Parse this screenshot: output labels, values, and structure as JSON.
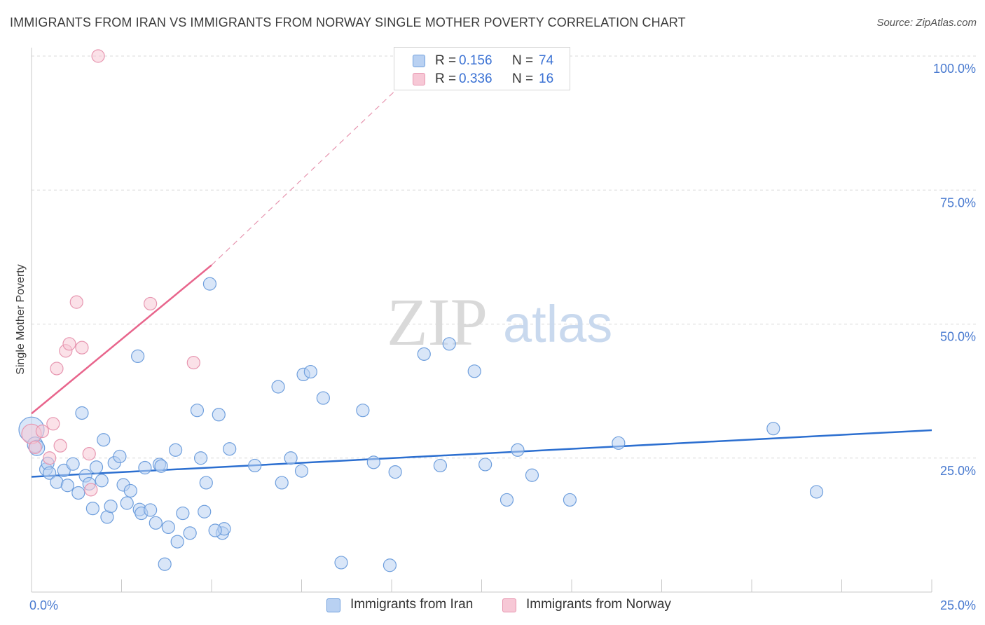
{
  "title": "IMMIGRANTS FROM IRAN VS IMMIGRANTS FROM NORWAY SINGLE MOTHER POVERTY CORRELATION CHART",
  "source": "Source: ZipAtlas.com",
  "watermark": {
    "zip": "ZIP",
    "atlas": "atlas"
  },
  "legend": {
    "r_label": "R =",
    "n_label": "N =",
    "rows": [
      {
        "series": "Immigrants from Iran",
        "r": "0.156",
        "n": "74"
      },
      {
        "series": "Immigrants from Norway",
        "r": "0.336",
        "n": "16"
      }
    ]
  },
  "colors": {
    "iran_fill": "#b9d1f2",
    "iran_stroke": "#6f9fdd",
    "iran_line": "#2c6fd0",
    "norway_fill": "#f7c8d6",
    "norway_stroke": "#e796b0",
    "norway_line": "#e8658c",
    "grid": "#d8d8d8",
    "tick_text": "#4a7bd0"
  },
  "chart_data": {
    "type": "scatter",
    "title": "IMMIGRANTS FROM IRAN VS IMMIGRANTS FROM NORWAY SINGLE MOTHER POVERTY CORRELATION CHART",
    "xlabel": "",
    "ylabel": "Single Mother Poverty",
    "xlim": [
      0,
      25
    ],
    "ylim": [
      0,
      100
    ],
    "x_tick_labels": [
      "0.0%",
      "25.0%"
    ],
    "y_ticks": [
      25,
      50,
      75,
      100
    ],
    "y_tick_labels": [
      "25.0%",
      "50.0%",
      "75.0%",
      "100.0%"
    ],
    "grid": true,
    "legend_position": "top-center",
    "series": [
      {
        "name": "Immigrants from Iran",
        "r": 0.156,
        "n": 74,
        "trend": {
          "x": [
            0,
            25
          ],
          "y": [
            21.5,
            30.2
          ],
          "style": "solid"
        },
        "points": [
          [
            0.0,
            30.3,
            18
          ],
          [
            0.1,
            27.5,
            11
          ],
          [
            0.15,
            26.9,
            11
          ],
          [
            0.4,
            22.9,
            9
          ],
          [
            0.45,
            24.0,
            9
          ],
          [
            0.5,
            22.2,
            9
          ],
          [
            0.7,
            20.5,
            9
          ],
          [
            0.9,
            22.7,
            9
          ],
          [
            1.0,
            19.9,
            9
          ],
          [
            1.15,
            23.9,
            9
          ],
          [
            1.3,
            18.5,
            9
          ],
          [
            1.4,
            33.4,
            9
          ],
          [
            1.5,
            21.7,
            9
          ],
          [
            1.6,
            20.2,
            9
          ],
          [
            1.7,
            15.6,
            9
          ],
          [
            1.8,
            23.3,
            9
          ],
          [
            1.95,
            20.8,
            9
          ],
          [
            2.0,
            28.4,
            9
          ],
          [
            2.1,
            14.0,
            9
          ],
          [
            2.2,
            16.0,
            9
          ],
          [
            2.3,
            24.1,
            9
          ],
          [
            2.45,
            25.3,
            9
          ],
          [
            2.55,
            20.0,
            9
          ],
          [
            2.65,
            16.6,
            9
          ],
          [
            2.75,
            18.9,
            9
          ],
          [
            2.95,
            44.0,
            9
          ],
          [
            3.0,
            15.4,
            9
          ],
          [
            3.05,
            14.7,
            9
          ],
          [
            3.15,
            23.2,
            9
          ],
          [
            3.3,
            15.3,
            9
          ],
          [
            3.45,
            12.9,
            9
          ],
          [
            3.55,
            23.8,
            9
          ],
          [
            3.6,
            23.5,
            9
          ],
          [
            3.8,
            12.1,
            9
          ],
          [
            4.0,
            26.5,
            9
          ],
          [
            4.05,
            9.4,
            9
          ],
          [
            4.2,
            14.7,
            9
          ],
          [
            4.4,
            11.0,
            9
          ],
          [
            4.6,
            33.9,
            9
          ],
          [
            4.7,
            25.0,
            9
          ],
          [
            4.8,
            15.0,
            9
          ],
          [
            4.85,
            20.4,
            9
          ],
          [
            4.95,
            57.5,
            9
          ],
          [
            5.2,
            33.1,
            9
          ],
          [
            5.3,
            11.0,
            9
          ],
          [
            5.35,
            11.8,
            9
          ],
          [
            5.5,
            26.7,
            9
          ],
          [
            6.2,
            23.6,
            9
          ],
          [
            6.85,
            38.3,
            9
          ],
          [
            6.95,
            20.4,
            9
          ],
          [
            7.2,
            25.0,
            9
          ],
          [
            7.5,
            22.6,
            9
          ],
          [
            7.55,
            40.6,
            9
          ],
          [
            7.75,
            41.1,
            9
          ],
          [
            8.1,
            36.2,
            9
          ],
          [
            8.6,
            5.5,
            9
          ],
          [
            9.2,
            33.9,
            9
          ],
          [
            9.5,
            24.2,
            9
          ],
          [
            9.95,
            5.0,
            9
          ],
          [
            10.1,
            22.4,
            9
          ],
          [
            10.9,
            44.4,
            9
          ],
          [
            11.6,
            46.3,
            9
          ],
          [
            11.35,
            23.6,
            9
          ],
          [
            12.3,
            41.2,
            9
          ],
          [
            12.6,
            23.8,
            9
          ],
          [
            13.2,
            17.2,
            9
          ],
          [
            13.5,
            26.5,
            9
          ],
          [
            13.9,
            21.8,
            9
          ],
          [
            14.95,
            17.2,
            9
          ],
          [
            16.3,
            27.8,
            9
          ],
          [
            20.6,
            30.5,
            9
          ],
          [
            21.8,
            18.7,
            9
          ],
          [
            3.7,
            5.2,
            9
          ],
          [
            5.1,
            11.5,
            9
          ]
        ]
      },
      {
        "name": "Immigrants from Norway",
        "r": 0.336,
        "n": 16,
        "trend": {
          "x": [
            0,
            5.0
          ],
          "y": [
            33.3,
            61.0
          ],
          "style": "solid",
          "extended_to": {
            "x": 10.8,
            "y": 98.0,
            "style": "dashed"
          }
        },
        "points": [
          [
            0.0,
            29.5,
            14
          ],
          [
            0.1,
            27.0,
            9
          ],
          [
            0.3,
            30.0,
            9
          ],
          [
            0.5,
            25.0,
            9
          ],
          [
            0.6,
            31.4,
            9
          ],
          [
            0.7,
            41.7,
            9
          ],
          [
            0.8,
            27.3,
            9
          ],
          [
            0.95,
            45.0,
            9
          ],
          [
            1.05,
            46.3,
            9
          ],
          [
            1.25,
            54.1,
            9
          ],
          [
            1.4,
            45.6,
            9
          ],
          [
            1.6,
            25.8,
            9
          ],
          [
            1.65,
            19.1,
            9
          ],
          [
            1.85,
            100.0,
            9
          ],
          [
            3.3,
            53.8,
            9
          ],
          [
            4.5,
            42.8,
            9
          ]
        ]
      }
    ]
  },
  "bottom_legend": [
    {
      "label": "Immigrants from Iran"
    },
    {
      "label": "Immigrants from Norway"
    }
  ]
}
